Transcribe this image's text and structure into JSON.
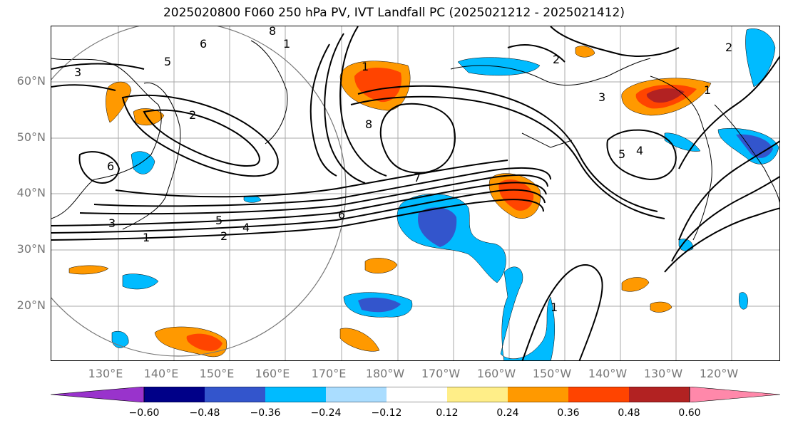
{
  "title": "2025020800 F060 250 hPa PV, IVT Landfall PC (2025021212 - 2025021412)",
  "lat_labels": [
    "60°N",
    "50°N",
    "40°N",
    "30°N",
    "20°N"
  ],
  "lon_labels": [
    "130°E",
    "140°E",
    "150°E",
    "160°E",
    "170°E",
    "180°W",
    "170°W",
    "160°W",
    "150°W",
    "140°W",
    "130°W",
    "120°W"
  ],
  "colorbar": {
    "ticks": [
      "−0.60",
      "−0.48",
      "−0.36",
      "−0.24",
      "−0.12",
      "0.12",
      "0.24",
      "0.36",
      "0.48",
      "0.60"
    ],
    "colors": [
      "#9933cc",
      "#000088",
      "#3355cc",
      "#00bbff",
      "#aaddff",
      "#ffffff",
      "#ffee88",
      "#ff9900",
      "#ff4400",
      "#b22222",
      "#ff88aa"
    ]
  },
  "pv_contour_labels": [
    "1",
    "2",
    "3",
    "4",
    "5",
    "6",
    "7",
    "8",
    "3",
    "2",
    "1",
    "5",
    "6",
    "1",
    "2",
    "3",
    "5",
    "4",
    "1",
    "6",
    "8",
    "1",
    "2"
  ],
  "colors": {
    "warm_orange": "#ff9900",
    "warm_red": "#ff4400",
    "warm_dark": "#b22222",
    "warm_light": "#ffee88",
    "cool_light": "#aaddff",
    "cool_cyan": "#00bbff",
    "cool_blue": "#3355cc",
    "gridline": "#aaaaaa",
    "axis_label": "#777777"
  }
}
